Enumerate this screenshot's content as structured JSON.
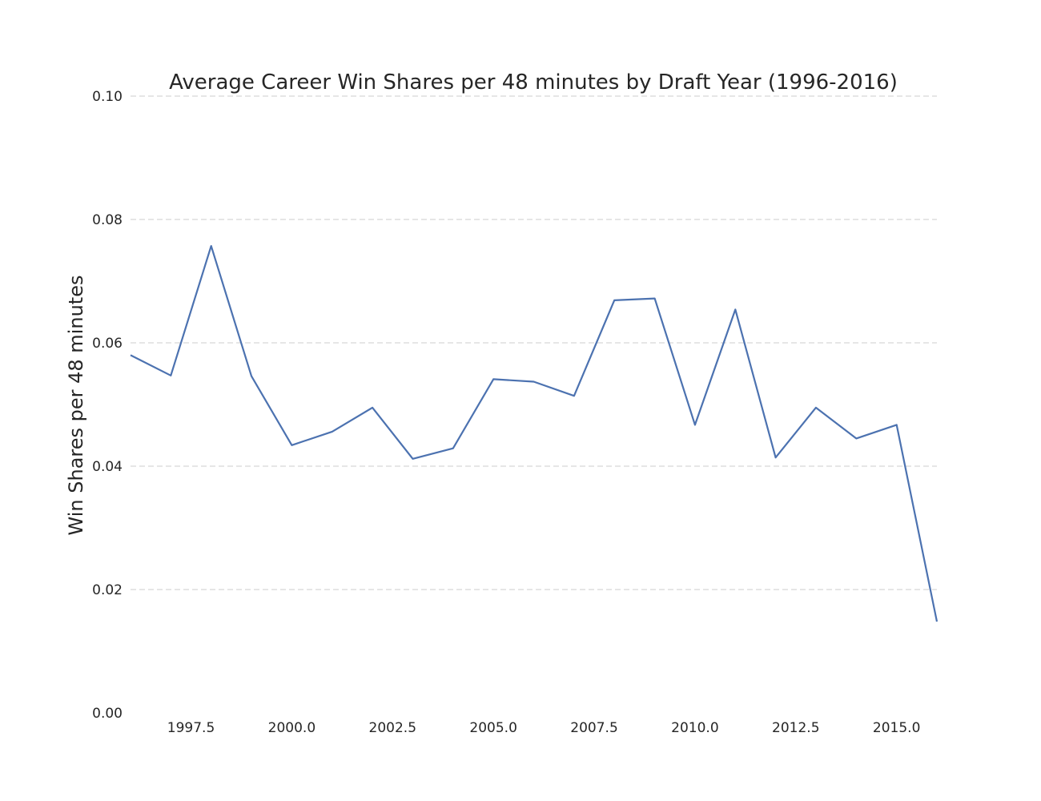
{
  "chart_data": {
    "type": "line",
    "title": "Average Career Win Shares per 48 minutes by Draft Year (1996-2016)",
    "xlabel": "",
    "ylabel": "Win Shares per 48 minutes",
    "xlim": [
      1996,
      2016
    ],
    "ylim": [
      0.0,
      0.1
    ],
    "x_ticks": [
      "1997.5",
      "2000.0",
      "2002.5",
      "2005.0",
      "2007.5",
      "2010.0",
      "2012.5",
      "2015.0"
    ],
    "y_ticks": [
      "0.00",
      "0.02",
      "0.04",
      "0.06",
      "0.08",
      "0.10"
    ],
    "grid": "horizontal dashed",
    "series": [
      {
        "color": "#4c72b0",
        "x": [
          1996,
          1997,
          1998,
          1999,
          2000,
          2001,
          2002,
          2003,
          2004,
          2005,
          2006,
          2007,
          2008,
          2009,
          2010,
          2011,
          2012,
          2013,
          2014,
          2015,
          2016
        ],
        "values": [
          0.058,
          0.0547,
          0.0757,
          0.0546,
          0.0434,
          0.0456,
          0.0495,
          0.0412,
          0.0429,
          0.0541,
          0.0537,
          0.0514,
          0.0669,
          0.0672,
          0.0467,
          0.0654,
          0.0414,
          0.0495,
          0.0445,
          0.0467,
          0.0148
        ]
      }
    ]
  }
}
